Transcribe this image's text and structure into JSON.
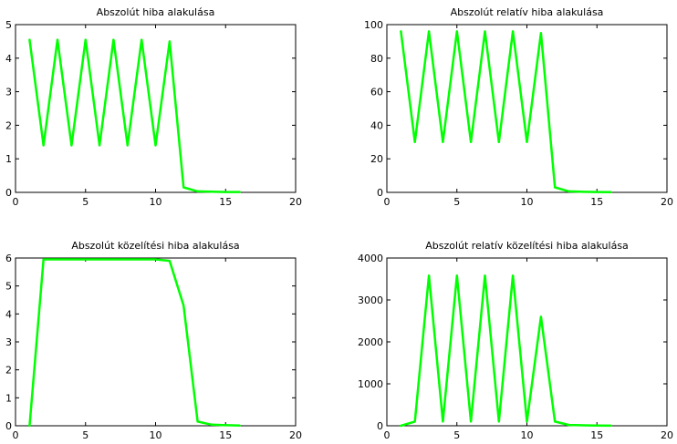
{
  "line_color": "#00ff00",
  "chart_data": [
    {
      "type": "line",
      "title": "Abszolút hiba alakulása",
      "xlim": [
        0,
        20
      ],
      "ylim": [
        0,
        5
      ],
      "xticks": [
        0,
        5,
        10,
        15,
        20
      ],
      "yticks": [
        0,
        1,
        2,
        3,
        4,
        5
      ],
      "grid": false,
      "x": [
        1,
        2,
        3,
        4,
        5,
        6,
        7,
        8,
        9,
        10,
        11,
        12,
        13,
        14,
        15,
        16
      ],
      "y": [
        4.55,
        1.4,
        4.55,
        1.4,
        4.55,
        1.4,
        4.55,
        1.4,
        4.55,
        1.4,
        4.5,
        0.15,
        0.03,
        0.02,
        0.01,
        0.01
      ]
    },
    {
      "type": "line",
      "title": "Abszolút relatív hiba alakulása",
      "xlim": [
        0,
        20
      ],
      "ylim": [
        0,
        100
      ],
      "xticks": [
        0,
        5,
        10,
        15,
        20
      ],
      "yticks": [
        0,
        20,
        40,
        60,
        80,
        100
      ],
      "grid": false,
      "x": [
        1,
        2,
        3,
        4,
        5,
        6,
        7,
        8,
        9,
        10,
        11,
        12,
        13,
        14,
        15,
        16
      ],
      "y": [
        96,
        30,
        96,
        30,
        96,
        30,
        96,
        30,
        96,
        30,
        95,
        3,
        0.6,
        0.3,
        0.2,
        0.1
      ]
    },
    {
      "type": "line",
      "title": "Abszolút közelítési hiba alakulása",
      "xlim": [
        0,
        20
      ],
      "ylim": [
        0,
        6
      ],
      "xticks": [
        0,
        5,
        10,
        15,
        20
      ],
      "yticks": [
        0,
        1,
        2,
        3,
        4,
        5,
        6
      ],
      "grid": false,
      "x": [
        1,
        2,
        3,
        4,
        5,
        6,
        7,
        8,
        9,
        10,
        11,
        12,
        13,
        14,
        15,
        16
      ],
      "y": [
        0,
        5.95,
        5.95,
        5.95,
        5.95,
        5.95,
        5.95,
        5.95,
        5.95,
        5.95,
        5.9,
        4.3,
        0.15,
        0.04,
        0.02,
        0.01
      ]
    },
    {
      "type": "line",
      "title": "Abszolút relatív közelítési hiba alakulása",
      "xlim": [
        0,
        20
      ],
      "ylim": [
        0,
        4000
      ],
      "xticks": [
        0,
        5,
        10,
        15,
        20
      ],
      "yticks": [
        0,
        1000,
        2000,
        3000,
        4000
      ],
      "grid": false,
      "x": [
        1,
        2,
        3,
        4,
        5,
        6,
        7,
        8,
        9,
        10,
        11,
        12,
        13,
        14,
        15,
        16
      ],
      "y": [
        0,
        100,
        3580,
        100,
        3580,
        100,
        3580,
        100,
        3580,
        100,
        2600,
        100,
        20,
        10,
        5,
        2
      ]
    }
  ]
}
